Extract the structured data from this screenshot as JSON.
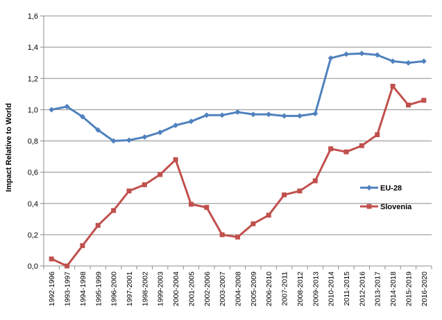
{
  "chart_data": {
    "type": "line",
    "title": "",
    "xlabel": "",
    "ylabel": "Impact Relative to World",
    "ylim": [
      0,
      1.6
    ],
    "yticks": [
      "0,0",
      "0,2",
      "0,4",
      "0,6",
      "0,8",
      "1,0",
      "1,2",
      "1,4",
      "1,6"
    ],
    "grid": "horizontal",
    "legend": "right",
    "categories": [
      "1992-1996",
      "1993-1997",
      "1994-1998",
      "1995-1999",
      "1996-2000",
      "1997-2001",
      "1998-2002",
      "1999-2003",
      "2000-2004",
      "2001-2005",
      "2002-2006",
      "2003-2007",
      "2004-2008",
      "2005-2009",
      "2006-2010",
      "2007-2011",
      "2008-2012",
      "2009-2013",
      "2010-2014",
      "2011-2015",
      "2012-2016",
      "2013-2017",
      "2014-2018",
      "2015-2019",
      "2016-2020"
    ],
    "series": [
      {
        "name": "EU-28",
        "color": "#4F81BD",
        "marker": "diamond",
        "values": [
          1.0,
          1.02,
          0.955,
          0.87,
          0.8,
          0.805,
          0.825,
          0.855,
          0.9,
          0.925,
          0.965,
          0.965,
          0.985,
          0.97,
          0.97,
          0.96,
          0.96,
          0.975,
          1.33,
          1.355,
          1.36,
          1.35,
          1.31,
          1.3,
          1.31
        ]
      },
      {
        "name": "Slovenia",
        "color": "#C0504D",
        "marker": "square",
        "values": [
          0.045,
          0.0,
          0.13,
          0.26,
          0.355,
          0.48,
          0.52,
          0.585,
          0.68,
          0.395,
          0.375,
          0.2,
          0.185,
          0.27,
          0.325,
          0.455,
          0.48,
          0.545,
          0.75,
          0.73,
          0.77,
          0.84,
          1.15,
          1.03,
          1.06
        ]
      }
    ]
  }
}
